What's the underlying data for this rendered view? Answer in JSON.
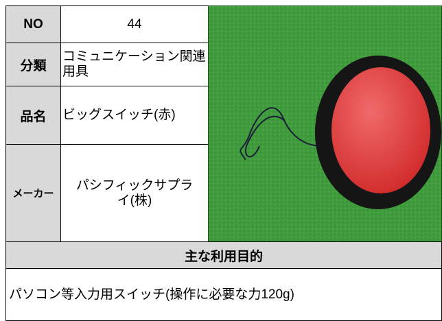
{
  "table": {
    "rows": [
      {
        "label": "NO",
        "value": "44"
      },
      {
        "label": "分類",
        "value": "コミュニケーション関連用具"
      },
      {
        "label": "品名",
        "value": "ビッグスイッチ(赤)"
      },
      {
        "label": "メーカー",
        "value": "パシフィックサプライ(株)"
      }
    ]
  },
  "purpose": {
    "heading": "主な利用目的",
    "text": "パソコン等入力用スイッチ(操作に必要な力120g)"
  }
}
